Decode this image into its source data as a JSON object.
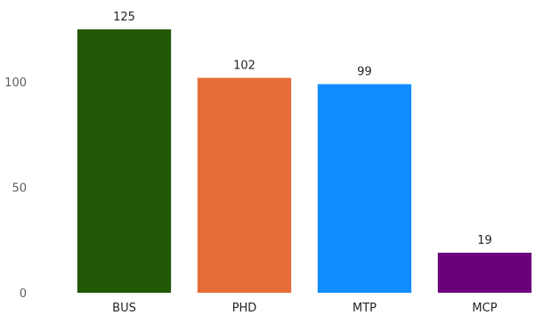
{
  "chart_data": {
    "type": "bar",
    "categories": [
      "BUS",
      "PHD",
      "MTP",
      "MCP"
    ],
    "values": [
      125,
      102,
      99,
      19
    ],
    "colors": [
      "#225907",
      "#E66C37",
      "#118DFF",
      "#6B007B"
    ],
    "yticks": [
      0,
      50,
      100
    ],
    "ylim": [
      0,
      125
    ],
    "grid": false,
    "data_labels": true
  }
}
